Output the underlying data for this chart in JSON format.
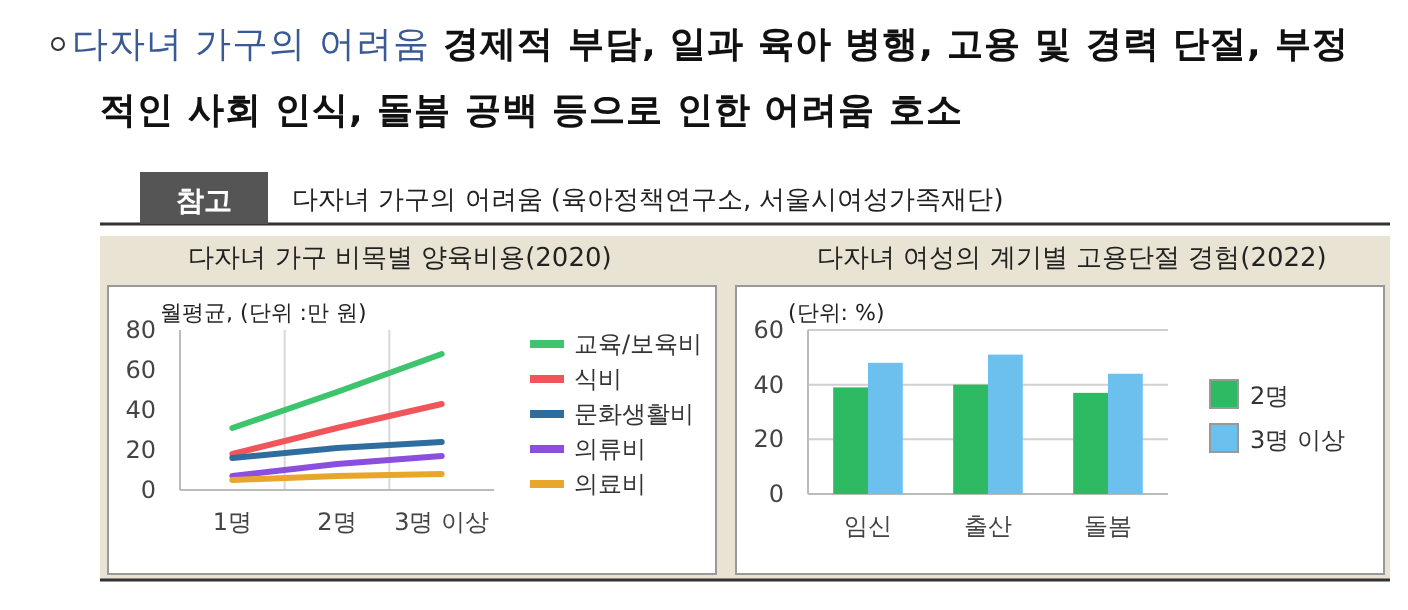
{
  "chart_data": [
    {
      "type": "line",
      "title": "다자녀 가구 비목별 양육비용(2020)",
      "ylabel": "월평균, (단위 :만 원)",
      "categories": [
        "1명",
        "2명",
        "3명 이상"
      ],
      "series": [
        {
          "name": "교육/보육비",
          "color": "#3dc46c",
          "values": [
            31,
            49,
            68
          ]
        },
        {
          "name": "식비",
          "color": "#f0555a",
          "values": [
            18,
            31,
            43
          ]
        },
        {
          "name": "문화생활비",
          "color": "#2e6d9e",
          "values": [
            16,
            21,
            24
          ]
        },
        {
          "name": "의류비",
          "color": "#8b4fe0",
          "values": [
            7,
            13,
            17
          ]
        },
        {
          "name": "의료비",
          "color": "#e8a72a",
          "values": [
            5,
            7,
            8
          ]
        }
      ],
      "ylim": [
        0,
        80
      ],
      "yticks": [
        0,
        20,
        40,
        60,
        80
      ],
      "grid": "x",
      "legend": "right",
      "annotations": [
        "다자녀 가구의 어려움",
        "경제적 부담, 일과 육아 병행, 고용 및 경력 단절, 부정적인 사회 인식, 돌봄 공백 등으로 인한 어려움 호소",
        "참고",
        "다자녀 가구의 어려움 (육아정책연구소, 서울시여성가족재단)"
      ]
    },
    {
      "type": "bar",
      "title": "다자녀 여성의 계기별 고용단절 경험(2022)",
      "ylabel": "(단위: %)",
      "categories": [
        "임신",
        "출산",
        "돌봄"
      ],
      "series": [
        {
          "name": "2명",
          "color": "#2dba62",
          "values": [
            39,
            40,
            37
          ]
        },
        {
          "name": "3명 이상",
          "color": "#6cc0ee",
          "values": [
            48,
            51,
            44
          ]
        }
      ],
      "ylim": [
        0,
        60
      ],
      "yticks": [
        0,
        20,
        40,
        60
      ],
      "grid": "y",
      "legend": "right"
    }
  ]
}
